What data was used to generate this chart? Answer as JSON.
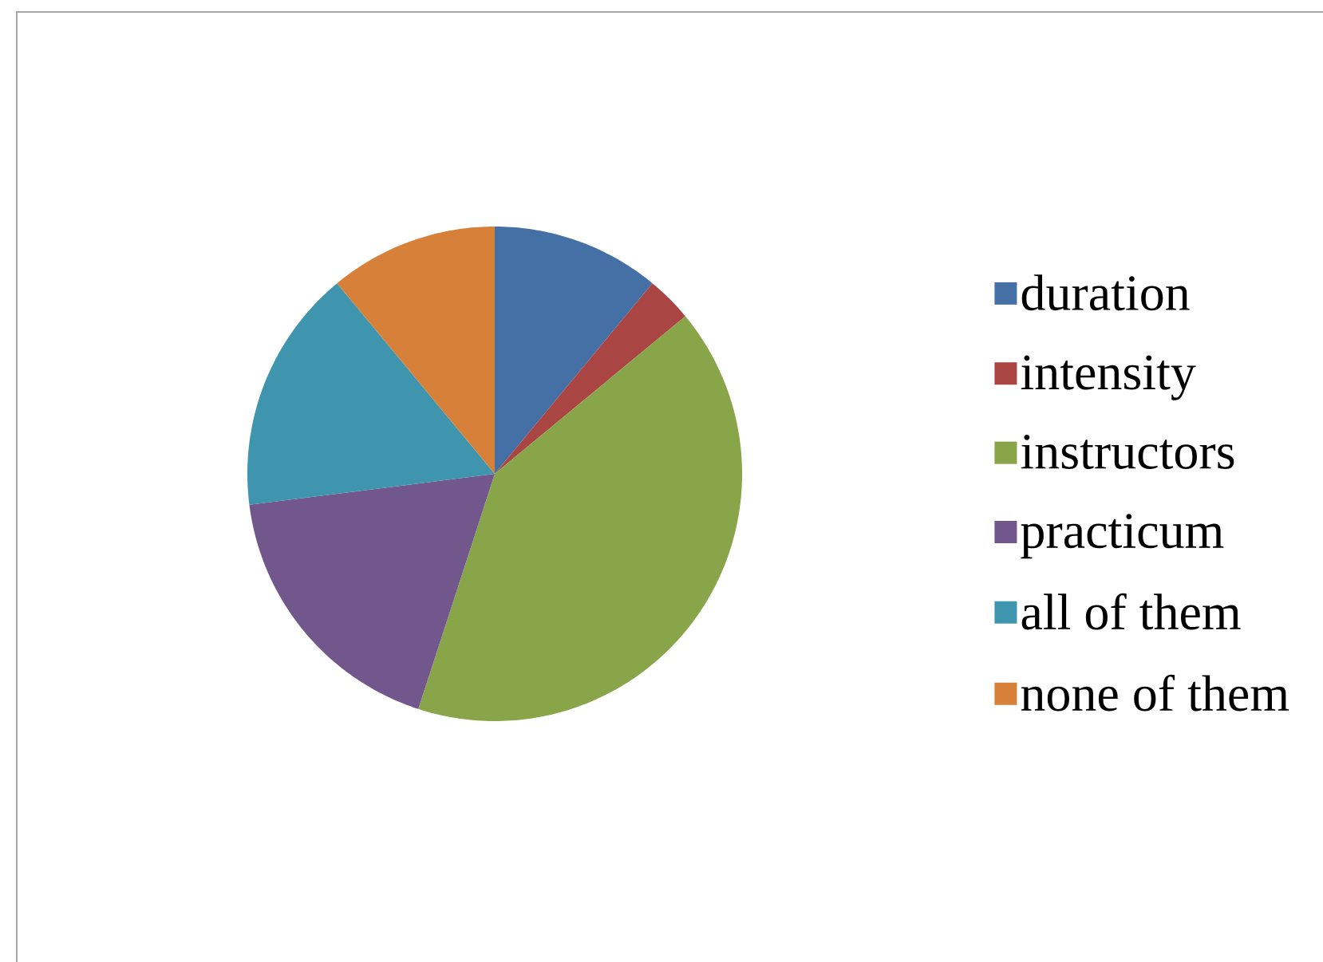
{
  "chart_data": {
    "type": "pie",
    "categories": [
      "duration",
      "intensity",
      "instructors",
      "practicum",
      "all of them",
      "none of them"
    ],
    "values": [
      11,
      3,
      41,
      18,
      16,
      11
    ],
    "colors": [
      "#4570a5",
      "#a94543",
      "#88a54a",
      "#71578c",
      "#3f95ad",
      "#d6803a"
    ],
    "legend": "right"
  }
}
